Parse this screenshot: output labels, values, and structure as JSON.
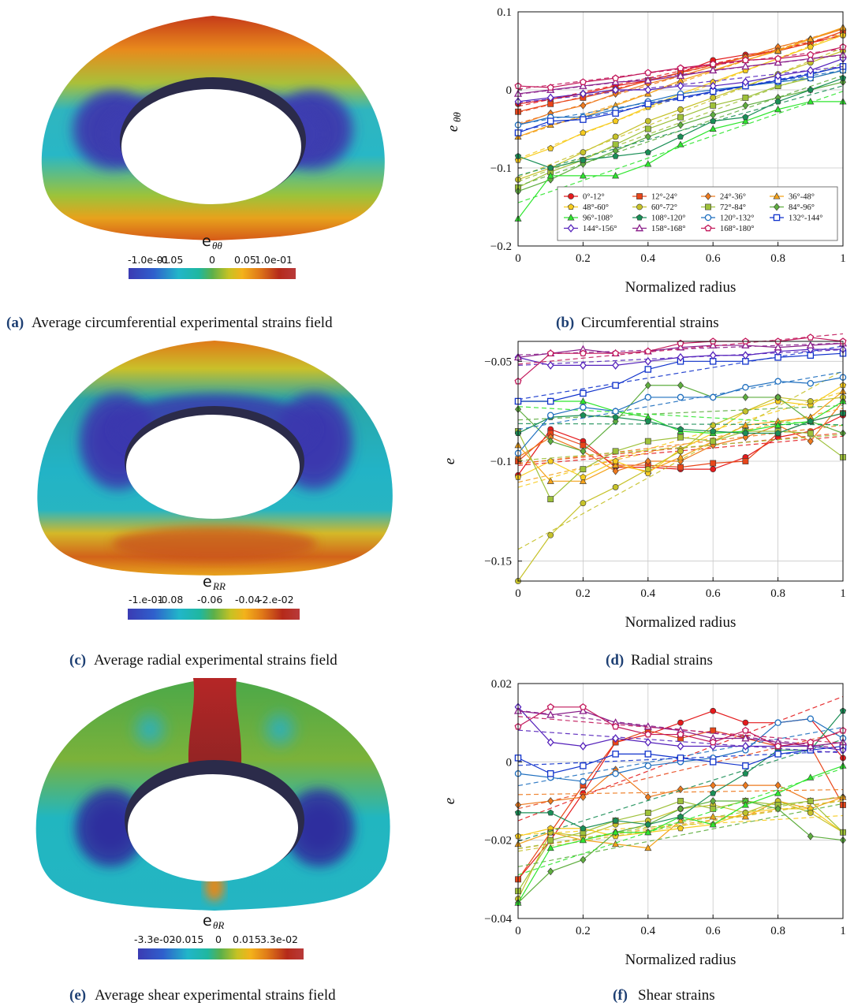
{
  "colors": {
    "caption_label": "#1d3f73",
    "grid": "#c8c8c8",
    "colormap": [
      "#3b3bb3",
      "#2f5fcc",
      "#21b6c9",
      "#1fb7a0",
      "#5bb04a",
      "#c7c223",
      "#f3b21b",
      "#e07a18",
      "#b52a1a",
      "#b83a3a"
    ]
  },
  "fields": [
    {
      "id": "theta",
      "cb_title": "e",
      "cb_sub": "θθ",
      "ticks": [
        "-1.0e-01",
        "-0.05",
        "0",
        "0.05",
        "1.0e-01"
      ],
      "caption_label": "(a)",
      "caption_text": "Average circumferential experimental strains field"
    },
    {
      "id": "radial",
      "cb_title": "e",
      "cb_sub": "RR",
      "ticks": [
        "-1.e-01",
        "-0.08",
        "-0.06",
        "-0.04",
        "-2.e-02"
      ],
      "caption_label": "(c)",
      "caption_text": "Average radial experimental strains field"
    },
    {
      "id": "shear",
      "cb_title": "e",
      "cb_sub": "θR",
      "ticks": [
        "-3.3e-02",
        "-0.015",
        "0",
        "0.015",
        "3.3e-02"
      ],
      "caption_label": "(e)",
      "caption_text": "Average shear experimental strains field"
    }
  ],
  "legend": [
    {
      "name": "0°-12°",
      "color": "#e41a1c",
      "marker": "circle"
    },
    {
      "name": "12°-24°",
      "color": "#e8461a",
      "marker": "square"
    },
    {
      "name": "24°-36°",
      "color": "#ee7a1e",
      "marker": "diamond"
    },
    {
      "name": "36°-48°",
      "color": "#f4a21a",
      "marker": "triangle"
    },
    {
      "name": "48°-60°",
      "color": "#f7cc1f",
      "marker": "pentagon"
    },
    {
      "name": "60°-72°",
      "color": "#c6c22a",
      "marker": "circle"
    },
    {
      "name": "72°-84°",
      "color": "#9ec13a",
      "marker": "square"
    },
    {
      "name": "84°-96°",
      "color": "#5fae3f",
      "marker": "diamond"
    },
    {
      "name": "96°-108°",
      "color": "#2ee62e",
      "marker": "triangle"
    },
    {
      "name": "108°-120°",
      "color": "#1a8f57",
      "marker": "pentagon"
    },
    {
      "name": "120°-132°",
      "color": "#1f6fbf",
      "marker": "circle_open"
    },
    {
      "name": "132°-144°",
      "color": "#1133cc",
      "marker": "square_open"
    },
    {
      "name": "144°-156°",
      "color": "#5522bb",
      "marker": "diamond_open"
    },
    {
      "name": "158°-168°",
      "color": "#8a1f8a",
      "marker": "triangle_open"
    },
    {
      "name": "168°-180°",
      "color": "#c2185b",
      "marker": "pentagon_open"
    }
  ],
  "chart_data": [
    {
      "type": "line",
      "panel": "b",
      "caption_label": "(b)",
      "caption_text": "Circumferential strains",
      "xlabel": "Normalized radius",
      "ylabel": "e",
      "ylabel_sub": "θθ",
      "xlim": [
        0,
        1
      ],
      "ylim": [
        -0.2,
        0.1
      ],
      "xticks": [
        0,
        0.2,
        0.4,
        0.6,
        0.8,
        1
      ],
      "xtick_labels": [
        "0",
        "0.2",
        "0.4",
        "0.6",
        "0.8",
        "1"
      ],
      "yticks": [
        -0.2,
        -0.1,
        0,
        0.1
      ],
      "ytick_labels": [
        "−0.2",
        "−0.1",
        "0",
        "0.1"
      ],
      "grid": true,
      "legend_position": "bottom-right",
      "x": [
        0,
        0.1,
        0.2,
        0.3,
        0.4,
        0.5,
        0.6,
        0.7,
        0.8,
        0.9,
        1.0
      ],
      "series": [
        {
          "name": "0°-12°",
          "values": [
            -0.018,
            -0.012,
            -0.005,
            0.005,
            0.012,
            0.022,
            0.038,
            0.045,
            0.05,
            0.06,
            0.07
          ]
        },
        {
          "name": "12°-24°",
          "values": [
            -0.028,
            -0.018,
            -0.01,
            0.0,
            0.012,
            0.022,
            0.032,
            0.042,
            0.05,
            0.06,
            0.075
          ]
        },
        {
          "name": "24°-36°",
          "values": [
            -0.045,
            -0.03,
            -0.02,
            -0.005,
            0.008,
            0.018,
            0.03,
            0.042,
            0.055,
            0.065,
            0.078
          ]
        },
        {
          "name": "36°-48°",
          "values": [
            -0.06,
            -0.045,
            -0.035,
            -0.02,
            -0.005,
            0.012,
            0.025,
            0.038,
            0.05,
            0.065,
            0.08
          ]
        },
        {
          "name": "48°-60°",
          "values": [
            -0.09,
            -0.075,
            -0.055,
            -0.04,
            -0.022,
            -0.005,
            0.01,
            0.025,
            0.04,
            0.055,
            0.07
          ]
        },
        {
          "name": "60°-72°",
          "values": [
            -0.115,
            -0.1,
            -0.08,
            -0.06,
            -0.04,
            -0.025,
            -0.01,
            0.005,
            0.02,
            0.035,
            0.05
          ]
        },
        {
          "name": "72°-84°",
          "values": [
            -0.125,
            -0.105,
            -0.09,
            -0.07,
            -0.05,
            -0.035,
            -0.02,
            -0.01,
            0.005,
            0.015,
            0.025
          ]
        },
        {
          "name": "84°-96°",
          "values": [
            -0.13,
            -0.115,
            -0.095,
            -0.078,
            -0.06,
            -0.045,
            -0.032,
            -0.02,
            -0.01,
            0.0,
            0.01
          ]
        },
        {
          "name": "96°-108°",
          "values": [
            -0.165,
            -0.11,
            -0.11,
            -0.11,
            -0.095,
            -0.07,
            -0.05,
            -0.04,
            -0.025,
            -0.015,
            -0.015
          ]
        },
        {
          "name": "108°-120°",
          "values": [
            -0.085,
            -0.1,
            -0.09,
            -0.085,
            -0.08,
            -0.06,
            -0.04,
            -0.035,
            -0.015,
            0.0,
            0.015
          ]
        },
        {
          "name": "120°-132°",
          "values": [
            -0.045,
            -0.035,
            -0.035,
            -0.025,
            -0.015,
            -0.005,
            0.0,
            0.005,
            0.01,
            0.015,
            0.025
          ]
        },
        {
          "name": "132°-144°",
          "values": [
            -0.055,
            -0.04,
            -0.038,
            -0.03,
            -0.018,
            -0.01,
            -0.002,
            0.005,
            0.012,
            0.02,
            0.03
          ]
        },
        {
          "name": "144°-156°",
          "values": [
            -0.015,
            -0.01,
            -0.005,
            0.0,
            0.0,
            0.005,
            0.005,
            0.01,
            0.018,
            0.025,
            0.04
          ]
        },
        {
          "name": "158°-168°",
          "values": [
            -0.005,
            0.0,
            0.005,
            0.01,
            0.012,
            0.018,
            0.025,
            0.03,
            0.035,
            0.04,
            0.045
          ]
        },
        {
          "name": "168°-180°",
          "values": [
            0.005,
            0.003,
            0.01,
            0.015,
            0.022,
            0.028,
            0.033,
            0.038,
            0.04,
            0.045,
            0.055
          ]
        }
      ]
    },
    {
      "type": "line",
      "panel": "d",
      "caption_label": "(d)",
      "caption_text": "Radial strains",
      "xlabel": "Normalized radius",
      "ylabel": "e",
      "ylabel_sub": "",
      "xlim": [
        0,
        1
      ],
      "ylim": [
        -0.16,
        -0.04
      ],
      "xticks": [
        0,
        0.2,
        0.4,
        0.6,
        0.8,
        1
      ],
      "xtick_labels": [
        "0",
        "0.2",
        "0.4",
        "0.6",
        "0.8",
        "1"
      ],
      "yticks": [
        -0.15,
        -0.1,
        -0.05
      ],
      "ytick_labels": [
        "−0.15",
        "−0.1",
        "−0.05"
      ],
      "grid": true,
      "x": [
        0,
        0.1,
        0.2,
        0.3,
        0.4,
        0.5,
        0.6,
        0.7,
        0.8,
        0.9,
        1.0
      ],
      "series": [
        {
          "name": "0°-12°",
          "values": [
            -0.107,
            -0.084,
            -0.09,
            -0.103,
            -0.103,
            -0.104,
            -0.104,
            -0.098,
            -0.088,
            -0.085,
            -0.077
          ]
        },
        {
          "name": "12°-24°",
          "values": [
            -0.1,
            -0.086,
            -0.092,
            -0.102,
            -0.102,
            -0.103,
            -0.101,
            -0.1,
            -0.086,
            -0.08,
            -0.076
          ]
        },
        {
          "name": "24°-36°",
          "values": [
            -0.098,
            -0.088,
            -0.095,
            -0.105,
            -0.1,
            -0.1,
            -0.092,
            -0.088,
            -0.082,
            -0.09,
            -0.07
          ]
        },
        {
          "name": "36°-48°",
          "values": [
            -0.092,
            -0.11,
            -0.11,
            -0.102,
            -0.105,
            -0.098,
            -0.09,
            -0.082,
            -0.08,
            -0.078,
            -0.065
          ]
        },
        {
          "name": "48°-60°",
          "values": [
            -0.108,
            -0.1,
            -0.108,
            -0.1,
            -0.106,
            -0.094,
            -0.086,
            -0.075,
            -0.07,
            -0.072,
            -0.062
          ]
        },
        {
          "name": "60°-72°",
          "values": [
            -0.16,
            -0.137,
            -0.121,
            -0.113,
            -0.104,
            -0.095,
            -0.082,
            -0.075,
            -0.068,
            -0.07,
            -0.068
          ]
        },
        {
          "name": "72°-84°",
          "values": [
            -0.085,
            -0.119,
            -0.104,
            -0.095,
            -0.09,
            -0.088,
            -0.09,
            -0.085,
            -0.085,
            -0.086,
            -0.098
          ]
        },
        {
          "name": "84°-96°",
          "values": [
            -0.074,
            -0.09,
            -0.095,
            -0.08,
            -0.062,
            -0.062,
            -0.068,
            -0.068,
            -0.068,
            -0.08,
            -0.086
          ]
        },
        {
          "name": "96°-108°",
          "values": [
            -0.07,
            -0.07,
            -0.07,
            -0.075,
            -0.078,
            -0.085,
            -0.086,
            -0.085,
            -0.082,
            -0.08,
            -0.07
          ]
        },
        {
          "name": "108°-120°",
          "values": [
            -0.086,
            -0.078,
            -0.077,
            -0.078,
            -0.08,
            -0.084,
            -0.085,
            -0.086,
            -0.086,
            -0.08,
            -0.076
          ]
        },
        {
          "name": "120°-132°",
          "values": [
            -0.096,
            -0.077,
            -0.073,
            -0.075,
            -0.068,
            -0.068,
            -0.068,
            -0.063,
            -0.06,
            -0.061,
            -0.058
          ]
        },
        {
          "name": "132°-144°",
          "values": [
            -0.07,
            -0.07,
            -0.066,
            -0.062,
            -0.054,
            -0.05,
            -0.05,
            -0.05,
            -0.048,
            -0.047,
            -0.046
          ]
        },
        {
          "name": "144°-156°",
          "values": [
            -0.048,
            -0.052,
            -0.052,
            -0.052,
            -0.05,
            -0.048,
            -0.047,
            -0.047,
            -0.045,
            -0.044,
            -0.044
          ]
        },
        {
          "name": "158°-168°",
          "values": [
            -0.048,
            -0.046,
            -0.044,
            -0.046,
            -0.045,
            -0.043,
            -0.042,
            -0.042,
            -0.043,
            -0.042,
            -0.041
          ]
        },
        {
          "name": "168°-180°",
          "values": [
            -0.06,
            -0.046,
            -0.046,
            -0.046,
            -0.045,
            -0.041,
            -0.04,
            -0.04,
            -0.04,
            -0.038,
            -0.04
          ]
        }
      ]
    },
    {
      "type": "line",
      "panel": "f",
      "caption_label": "(f)",
      "caption_text": "Shear strains",
      "xlabel": "Normalized radius",
      "ylabel": "e",
      "ylabel_sub": "",
      "xlim": [
        0,
        1
      ],
      "ylim": [
        -0.04,
        0.02
      ],
      "xticks": [
        0,
        0.2,
        0.4,
        0.6,
        0.8,
        1
      ],
      "xtick_labels": [
        "0",
        "0.2",
        "0.4",
        "0.6",
        "0.8",
        "1"
      ],
      "yticks": [
        -0.04,
        -0.02,
        0,
        0.02
      ],
      "ytick_labels": [
        "−0.04",
        "−0.02",
        "0",
        "0.02"
      ],
      "grid": true,
      "x": [
        0,
        0.1,
        0.2,
        0.3,
        0.4,
        0.5,
        0.6,
        0.7,
        0.8,
        0.9,
        1.0
      ],
      "series": [
        {
          "name": "0°-12°",
          "values": [
            -0.03,
            -0.02,
            -0.008,
            0.005,
            0.007,
            0.01,
            0.013,
            0.01,
            0.01,
            0.011,
            0.001
          ]
        },
        {
          "name": "12°-24°",
          "values": [
            -0.03,
            -0.018,
            -0.006,
            0.005,
            0.008,
            0.006,
            0.008,
            0.006,
            0.004,
            0.004,
            -0.011
          ]
        },
        {
          "name": "24°-36°",
          "values": [
            -0.011,
            -0.01,
            -0.009,
            -0.002,
            -0.009,
            -0.007,
            -0.006,
            -0.006,
            -0.006,
            -0.01,
            -0.009
          ]
        },
        {
          "name": "36°-48°",
          "values": [
            -0.021,
            -0.018,
            -0.02,
            -0.021,
            -0.022,
            -0.015,
            -0.014,
            -0.014,
            -0.01,
            -0.012,
            -0.009
          ]
        },
        {
          "name": "48°-60°",
          "values": [
            -0.019,
            -0.017,
            -0.017,
            -0.019,
            -0.018,
            -0.017,
            -0.016,
            -0.013,
            -0.012,
            -0.012,
            -0.018
          ]
        },
        {
          "name": "60°-72°",
          "values": [
            -0.035,
            -0.018,
            -0.019,
            -0.016,
            -0.015,
            -0.012,
            -0.011,
            -0.013,
            -0.01,
            -0.013,
            -0.018
          ]
        },
        {
          "name": "72°-84°",
          "values": [
            -0.033,
            -0.02,
            -0.018,
            -0.015,
            -0.013,
            -0.01,
            -0.012,
            -0.01,
            -0.011,
            -0.01,
            -0.018
          ]
        },
        {
          "name": "84°-96°",
          "values": [
            -0.036,
            -0.028,
            -0.025,
            -0.018,
            -0.016,
            -0.012,
            -0.01,
            -0.01,
            -0.012,
            -0.019,
            -0.02
          ]
        },
        {
          "name": "96°-108°",
          "values": [
            -0.036,
            -0.022,
            -0.02,
            -0.018,
            -0.018,
            -0.014,
            -0.016,
            -0.011,
            -0.008,
            -0.004,
            -0.001
          ]
        },
        {
          "name": "108°-120°",
          "values": [
            -0.013,
            -0.013,
            -0.017,
            -0.015,
            -0.016,
            -0.014,
            -0.008,
            -0.003,
            0.003,
            0.003,
            0.013
          ]
        },
        {
          "name": "120°-132°",
          "values": [
            -0.003,
            -0.004,
            -0.005,
            -0.003,
            -0.001,
            0.0,
            0.001,
            0.003,
            0.01,
            0.011,
            0.006
          ]
        },
        {
          "name": "132°-144°",
          "values": [
            0.001,
            -0.003,
            -0.001,
            0.002,
            0.002,
            0.001,
            0.0,
            -0.001,
            0.002,
            0.003,
            0.004
          ]
        },
        {
          "name": "144°-156°",
          "values": [
            0.014,
            0.005,
            0.004,
            0.006,
            0.005,
            0.004,
            0.004,
            0.004,
            0.004,
            0.004,
            0.003
          ]
        },
        {
          "name": "158°-168°",
          "values": [
            0.013,
            0.012,
            0.013,
            0.01,
            0.009,
            0.008,
            0.006,
            0.006,
            0.005,
            0.004,
            0.005
          ]
        },
        {
          "name": "168°-180°",
          "values": [
            0.009,
            0.014,
            0.014,
            0.009,
            0.007,
            0.007,
            0.005,
            0.008,
            0.004,
            0.005,
            0.008
          ]
        }
      ]
    }
  ]
}
